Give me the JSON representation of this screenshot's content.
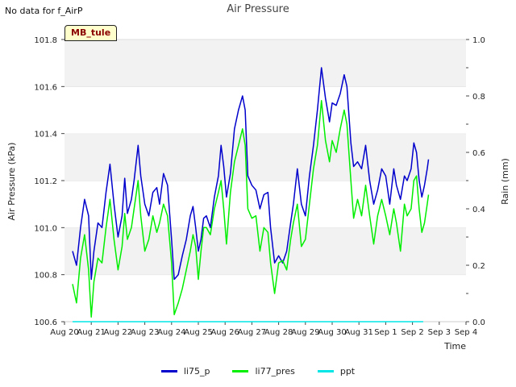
{
  "note": "No data for f_AirP",
  "badge": "MB_tule",
  "chart_data": {
    "type": "line",
    "title": "Air Pressure",
    "xlabel": "Time",
    "ylabel": "Air Pressure (kPa)",
    "y2label": "Rain (mm)",
    "ylim": [
      100.6,
      101.8
    ],
    "y2lim": [
      0.0,
      1.0
    ],
    "yticks": [
      "100.6",
      "100.8",
      "101.0",
      "101.2",
      "101.4",
      "101.6",
      "101.8"
    ],
    "y2ticks": [
      "0.0",
      "0.2",
      "0.4",
      "0.6",
      "0.8",
      "1.0"
    ],
    "xticks": [
      "Aug 20",
      "Aug 21",
      "Aug 22",
      "Aug 23",
      "Aug 24",
      "Aug 25",
      "Aug 26",
      "Aug 27",
      "Aug 28",
      "Aug 29",
      "Aug 30",
      "Aug 31",
      "Sep 1",
      "Sep 2",
      "Sep 3",
      "Sep 4"
    ],
    "x_unit": "days from Aug 20",
    "series": [
      {
        "name": "li75_p",
        "color": "#0000cc",
        "axis": "left",
        "points": [
          [
            0.3,
            100.9
          ],
          [
            0.45,
            100.84
          ],
          [
            0.6,
            101.0
          ],
          [
            0.75,
            101.12
          ],
          [
            0.9,
            101.05
          ],
          [
            1.0,
            100.78
          ],
          [
            1.1,
            100.9
          ],
          [
            1.25,
            101.02
          ],
          [
            1.4,
            101.0
          ],
          [
            1.55,
            101.15
          ],
          [
            1.7,
            101.27
          ],
          [
            1.85,
            101.1
          ],
          [
            2.0,
            100.96
          ],
          [
            2.15,
            101.05
          ],
          [
            2.25,
            101.21
          ],
          [
            2.35,
            101.06
          ],
          [
            2.5,
            101.12
          ],
          [
            2.6,
            101.2
          ],
          [
            2.75,
            101.35
          ],
          [
            2.85,
            101.22
          ],
          [
            3.0,
            101.1
          ],
          [
            3.15,
            101.05
          ],
          [
            3.3,
            101.15
          ],
          [
            3.45,
            101.17
          ],
          [
            3.55,
            101.1
          ],
          [
            3.7,
            101.23
          ],
          [
            3.85,
            101.18
          ],
          [
            4.0,
            100.95
          ],
          [
            4.1,
            100.78
          ],
          [
            4.25,
            100.8
          ],
          [
            4.4,
            100.88
          ],
          [
            4.55,
            100.95
          ],
          [
            4.7,
            101.05
          ],
          [
            4.8,
            101.09
          ],
          [
            4.9,
            101.0
          ],
          [
            5.0,
            100.9
          ],
          [
            5.1,
            100.95
          ],
          [
            5.2,
            101.04
          ],
          [
            5.3,
            101.05
          ],
          [
            5.45,
            101.0
          ],
          [
            5.6,
            101.13
          ],
          [
            5.75,
            101.22
          ],
          [
            5.85,
            101.35
          ],
          [
            5.95,
            101.26
          ],
          [
            6.05,
            101.13
          ],
          [
            6.2,
            101.23
          ],
          [
            6.35,
            101.42
          ],
          [
            6.5,
            101.5
          ],
          [
            6.65,
            101.56
          ],
          [
            6.75,
            101.5
          ],
          [
            6.85,
            101.22
          ],
          [
            7.0,
            101.18
          ],
          [
            7.15,
            101.16
          ],
          [
            7.3,
            101.08
          ],
          [
            7.45,
            101.14
          ],
          [
            7.6,
            101.15
          ],
          [
            7.7,
            101.0
          ],
          [
            7.85,
            100.85
          ],
          [
            8.0,
            100.88
          ],
          [
            8.15,
            100.85
          ],
          [
            8.3,
            100.9
          ],
          [
            8.45,
            101.02
          ],
          [
            8.55,
            101.1
          ],
          [
            8.7,
            101.25
          ],
          [
            8.85,
            101.1
          ],
          [
            9.0,
            101.05
          ],
          [
            9.15,
            101.22
          ],
          [
            9.3,
            101.35
          ],
          [
            9.45,
            101.5
          ],
          [
            9.6,
            101.68
          ],
          [
            9.75,
            101.55
          ],
          [
            9.9,
            101.45
          ],
          [
            10.0,
            101.53
          ],
          [
            10.15,
            101.52
          ],
          [
            10.3,
            101.57
          ],
          [
            10.45,
            101.65
          ],
          [
            10.55,
            101.6
          ],
          [
            10.7,
            101.36
          ],
          [
            10.8,
            101.26
          ],
          [
            10.95,
            101.28
          ],
          [
            11.1,
            101.25
          ],
          [
            11.25,
            101.35
          ],
          [
            11.4,
            101.2
          ],
          [
            11.55,
            101.1
          ],
          [
            11.7,
            101.16
          ],
          [
            11.85,
            101.25
          ],
          [
            12.0,
            101.22
          ],
          [
            12.15,
            101.1
          ],
          [
            12.3,
            101.25
          ],
          [
            12.4,
            101.18
          ],
          [
            12.55,
            101.12
          ],
          [
            12.7,
            101.22
          ],
          [
            12.8,
            101.2
          ],
          [
            12.95,
            101.25
          ],
          [
            13.05,
            101.36
          ],
          [
            13.15,
            101.32
          ],
          [
            13.25,
            101.2
          ],
          [
            13.35,
            101.13
          ],
          [
            13.45,
            101.18
          ],
          [
            13.55,
            101.25
          ],
          [
            13.6,
            101.29
          ]
        ]
      },
      {
        "name": "li77_pres",
        "color": "#00ee00",
        "axis": "left",
        "points": [
          [
            0.3,
            100.76
          ],
          [
            0.45,
            100.68
          ],
          [
            0.6,
            100.87
          ],
          [
            0.75,
            100.97
          ],
          [
            0.9,
            100.82
          ],
          [
            1.0,
            100.62
          ],
          [
            1.1,
            100.77
          ],
          [
            1.25,
            100.87
          ],
          [
            1.4,
            100.85
          ],
          [
            1.55,
            101.0
          ],
          [
            1.7,
            101.12
          ],
          [
            1.85,
            100.95
          ],
          [
            2.0,
            100.82
          ],
          [
            2.15,
            100.92
          ],
          [
            2.25,
            101.06
          ],
          [
            2.35,
            100.95
          ],
          [
            2.5,
            101.0
          ],
          [
            2.6,
            101.08
          ],
          [
            2.75,
            101.2
          ],
          [
            2.85,
            101.05
          ],
          [
            3.0,
            100.9
          ],
          [
            3.15,
            100.95
          ],
          [
            3.3,
            101.05
          ],
          [
            3.45,
            100.98
          ],
          [
            3.55,
            101.02
          ],
          [
            3.7,
            101.1
          ],
          [
            3.85,
            101.05
          ],
          [
            4.0,
            100.85
          ],
          [
            4.1,
            100.63
          ],
          [
            4.25,
            100.68
          ],
          [
            4.4,
            100.74
          ],
          [
            4.55,
            100.82
          ],
          [
            4.7,
            100.9
          ],
          [
            4.8,
            100.97
          ],
          [
            4.9,
            100.92
          ],
          [
            5.0,
            100.78
          ],
          [
            5.1,
            100.9
          ],
          [
            5.2,
            101.0
          ],
          [
            5.3,
            101.0
          ],
          [
            5.45,
            100.97
          ],
          [
            5.6,
            101.08
          ],
          [
            5.75,
            101.15
          ],
          [
            5.85,
            101.2
          ],
          [
            5.95,
            101.08
          ],
          [
            6.05,
            100.93
          ],
          [
            6.2,
            101.15
          ],
          [
            6.35,
            101.28
          ],
          [
            6.5,
            101.35
          ],
          [
            6.65,
            101.42
          ],
          [
            6.75,
            101.35
          ],
          [
            6.85,
            101.08
          ],
          [
            7.0,
            101.04
          ],
          [
            7.15,
            101.05
          ],
          [
            7.3,
            100.9
          ],
          [
            7.45,
            101.0
          ],
          [
            7.6,
            100.98
          ],
          [
            7.7,
            100.85
          ],
          [
            7.85,
            100.72
          ],
          [
            8.0,
            100.85
          ],
          [
            8.15,
            100.86
          ],
          [
            8.3,
            100.82
          ],
          [
            8.45,
            100.95
          ],
          [
            8.55,
            101.02
          ],
          [
            8.7,
            101.1
          ],
          [
            8.85,
            100.92
          ],
          [
            9.0,
            100.95
          ],
          [
            9.15,
            101.1
          ],
          [
            9.3,
            101.25
          ],
          [
            9.45,
            101.35
          ],
          [
            9.6,
            101.54
          ],
          [
            9.75,
            101.37
          ],
          [
            9.9,
            101.28
          ],
          [
            10.0,
            101.37
          ],
          [
            10.15,
            101.32
          ],
          [
            10.3,
            101.42
          ],
          [
            10.45,
            101.5
          ],
          [
            10.55,
            101.44
          ],
          [
            10.7,
            101.2
          ],
          [
            10.8,
            101.04
          ],
          [
            10.95,
            101.12
          ],
          [
            11.1,
            101.05
          ],
          [
            11.25,
            101.18
          ],
          [
            11.4,
            101.05
          ],
          [
            11.55,
            100.93
          ],
          [
            11.7,
            101.05
          ],
          [
            11.85,
            101.12
          ],
          [
            12.0,
            101.05
          ],
          [
            12.15,
            100.97
          ],
          [
            12.3,
            101.08
          ],
          [
            12.4,
            101.02
          ],
          [
            12.55,
            100.9
          ],
          [
            12.7,
            101.1
          ],
          [
            12.8,
            101.05
          ],
          [
            12.95,
            101.08
          ],
          [
            13.05,
            101.2
          ],
          [
            13.15,
            101.22
          ],
          [
            13.25,
            101.08
          ],
          [
            13.35,
            100.98
          ],
          [
            13.45,
            101.02
          ],
          [
            13.55,
            101.1
          ],
          [
            13.6,
            101.14
          ]
        ]
      },
      {
        "name": "ppt",
        "color": "#00e5e5",
        "axis": "right",
        "points": [
          [
            0.3,
            0.0
          ],
          [
            13.4,
            0.0
          ]
        ]
      }
    ]
  }
}
